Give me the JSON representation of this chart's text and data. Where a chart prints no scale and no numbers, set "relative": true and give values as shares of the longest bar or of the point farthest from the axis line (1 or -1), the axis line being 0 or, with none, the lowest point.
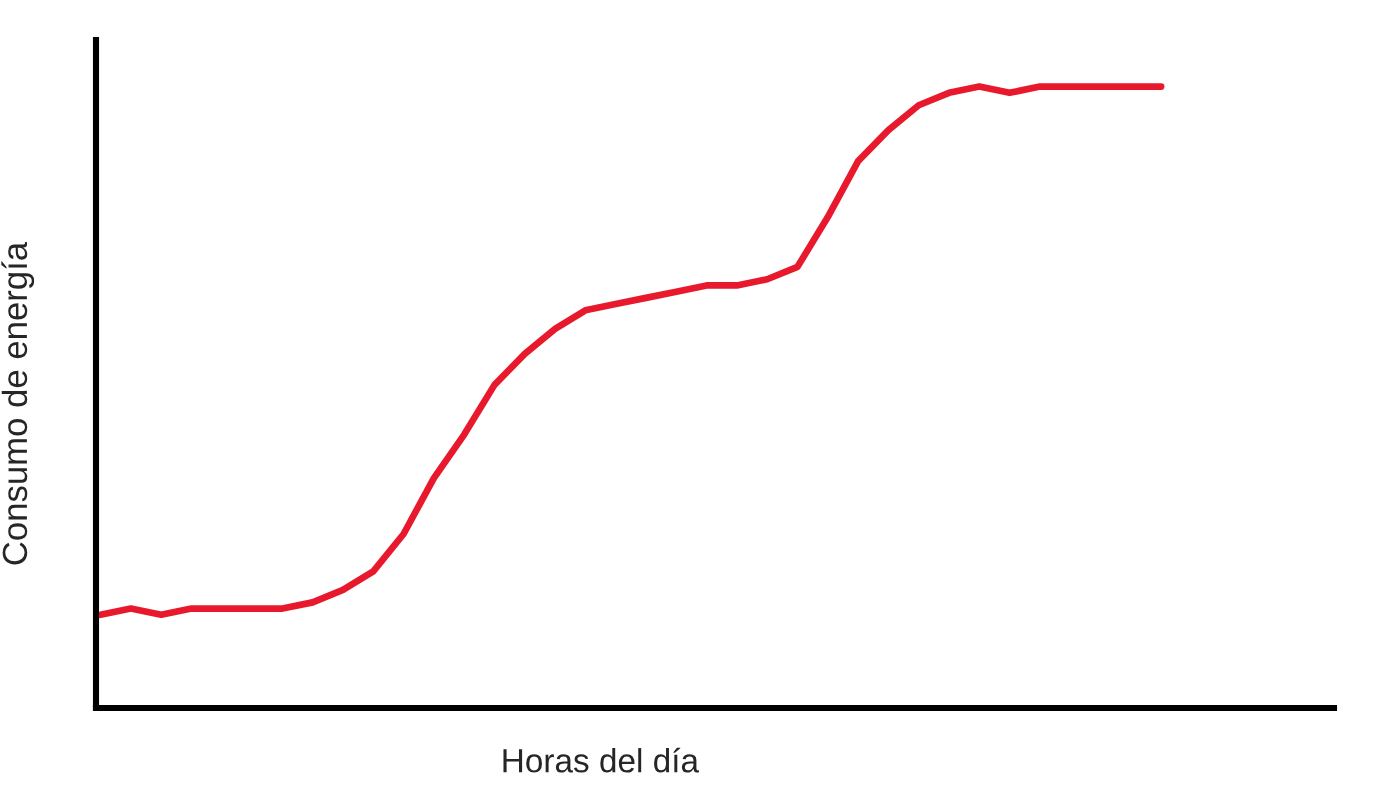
{
  "chart_data": {
    "type": "line",
    "relative": true,
    "xlabel": "Horas del día",
    "ylabel": "Consumo de energía",
    "marker": "none",
    "line_style": "solid",
    "categories": [
      null,
      null,
      null,
      null,
      null,
      null,
      null,
      null,
      null,
      null,
      null,
      null,
      null,
      null,
      null,
      null,
      null,
      null,
      null,
      null,
      null,
      null,
      null,
      null,
      null,
      null,
      null,
      null,
      null,
      null,
      null,
      null,
      null,
      null,
      null,
      null
    ],
    "series": [
      {
        "color": "#e8192c",
        "values": [
          0.15,
          0.16,
          0.15,
          0.16,
          0.16,
          0.16,
          0.16,
          0.17,
          0.19,
          0.22,
          0.28,
          0.37,
          0.44,
          0.52,
          0.57,
          0.61,
          0.64,
          0.65,
          0.66,
          0.67,
          0.68,
          0.68,
          0.69,
          0.71,
          0.79,
          0.88,
          0.93,
          0.97,
          0.99,
          1.0,
          0.99,
          1.0,
          1.0,
          1.0,
          1.0,
          1.0
        ]
      }
    ]
  }
}
